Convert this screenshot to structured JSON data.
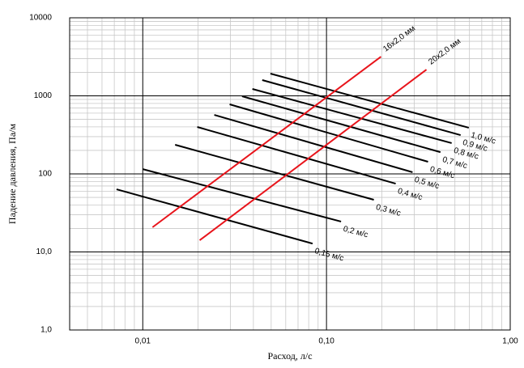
{
  "chart_data": {
    "type": "line",
    "x_label": "Расход, л/с",
    "y_label": "Падение давления, Па/м",
    "xscale": "log",
    "yscale": "log",
    "grid": true,
    "xlim": [
      0.004,
      1
    ],
    "ylim": [
      1,
      10000
    ],
    "xticks": [
      {
        "value": 0.01,
        "label": "0,01"
      },
      {
        "value": 0.1,
        "label": "0,10"
      },
      {
        "value": 1,
        "label": "1,00"
      }
    ],
    "yticks": [
      {
        "value": 1,
        "label": "1,0"
      },
      {
        "value": 10,
        "label": "10,0"
      },
      100,
      1000,
      10000
    ],
    "series": [
      {
        "name": "0,15 м/с",
        "color": "#000000",
        "x": [
          0.0072,
          0.084
        ],
        "values": [
          63.5,
          12.8
        ]
      },
      {
        "name": "0,2 м/с",
        "color": "#000000",
        "x": [
          0.01,
          0.12
        ],
        "values": [
          115,
          24.5
        ]
      },
      {
        "name": "0,3 м/с",
        "color": "#000000",
        "x": [
          0.015,
          0.181
        ],
        "values": [
          236,
          46.6
        ]
      },
      {
        "name": "0,4 м/с",
        "color": "#000000",
        "x": [
          0.0198,
          0.238
        ],
        "values": [
          399,
          75
        ]
      },
      {
        "name": "0,5 м/с",
        "color": "#000000",
        "x": [
          0.0245,
          0.294
        ],
        "values": [
          570,
          105
        ]
      },
      {
        "name": "0,6 м/с",
        "color": "#000000",
        "x": [
          0.0297,
          0.357
        ],
        "values": [
          778,
          143
        ]
      },
      {
        "name": "0,7 м/с",
        "color": "#000000",
        "x": [
          0.0347,
          0.417
        ],
        "values": [
          988,
          190
        ]
      },
      {
        "name": "0,8 м/с",
        "color": "#000000",
        "x": [
          0.0395,
          0.48
        ],
        "values": [
          1225,
          248
        ]
      },
      {
        "name": "0,9 м/с",
        "color": "#000000",
        "x": [
          0.0447,
          0.537
        ],
        "values": [
          1592,
          314
        ]
      },
      {
        "name": "1,0 м/с",
        "color": "#000000",
        "x": [
          0.0495,
          0.595
        ],
        "values": [
          1928,
          390
        ]
      },
      {
        "name": "16x2,0 мм",
        "color": "#e8141b",
        "x": [
          0.0113,
          0.198
        ],
        "values": [
          20.7,
          3180
        ]
      },
      {
        "name": "20x2,0 мм",
        "color": "#e8141b",
        "x": [
          0.0204,
          0.35
        ],
        "values": [
          14.1,
          2170
        ]
      }
    ]
  }
}
